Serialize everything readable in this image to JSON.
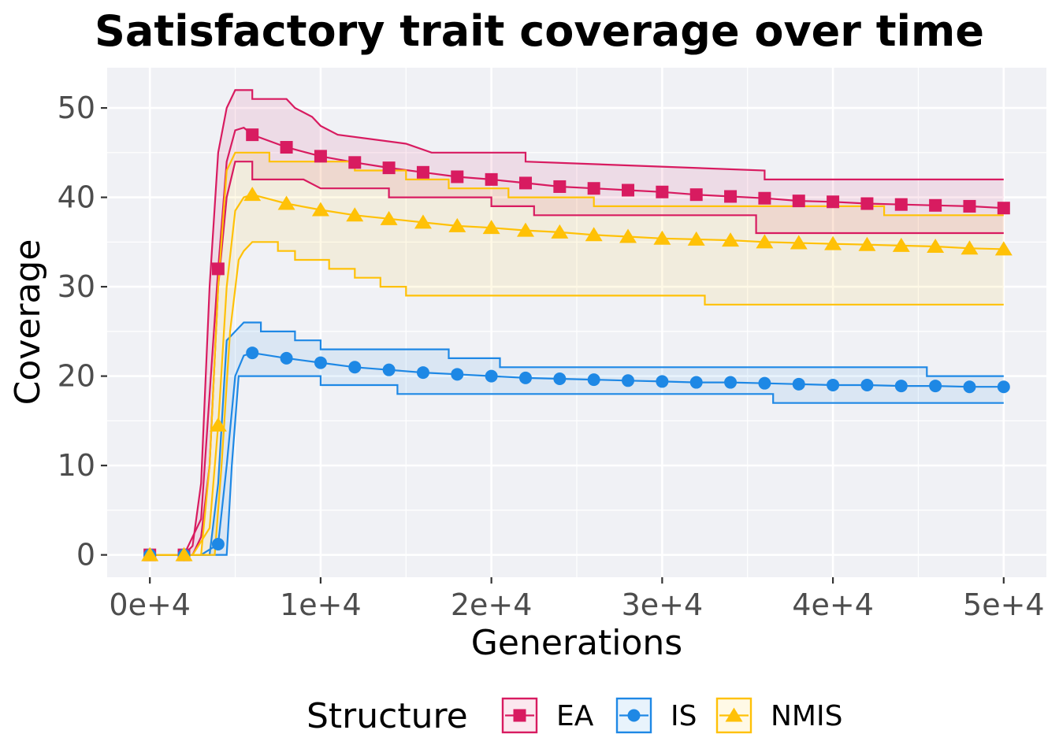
{
  "chart_data": {
    "type": "line",
    "title": "Satisfactory trait coverage over time",
    "xlabel": "Generations",
    "ylabel": "Coverage",
    "xlim": [
      -2500,
      52500
    ],
    "ylim": [
      -2.5,
      54.5
    ],
    "x_ticks": [
      0,
      10000,
      20000,
      30000,
      40000,
      50000
    ],
    "x_tick_labels": [
      "0e+4",
      "1e+4",
      "2e+4",
      "3e+4",
      "4e+4",
      "5e+4"
    ],
    "y_ticks": [
      0,
      10,
      20,
      30,
      40,
      50
    ],
    "y_tick_labels": [
      "0",
      "10",
      "20",
      "30",
      "40",
      "50"
    ],
    "grid": true,
    "legend": {
      "title": "Structure",
      "position": "bottom"
    },
    "series": [
      {
        "name": "EA",
        "color": "#d81b60",
        "marker": "square",
        "mean": [
          [
            0,
            0
          ],
          [
            2000,
            0
          ],
          [
            3000,
            4
          ],
          [
            4000,
            32
          ],
          [
            4500,
            44
          ],
          [
            5000,
            47.5
          ],
          [
            5500,
            47.8
          ],
          [
            6000,
            47
          ],
          [
            8000,
            45.6
          ],
          [
            10000,
            44.6
          ],
          [
            12000,
            43.9
          ],
          [
            14000,
            43.3
          ],
          [
            16000,
            42.8
          ],
          [
            18000,
            42.3
          ],
          [
            20000,
            42
          ],
          [
            22000,
            41.6
          ],
          [
            24000,
            41.2
          ],
          [
            26000,
            41
          ],
          [
            28000,
            40.8
          ],
          [
            30000,
            40.6
          ],
          [
            32000,
            40.3
          ],
          [
            34000,
            40.1
          ],
          [
            36000,
            39.9
          ],
          [
            38000,
            39.6
          ],
          [
            40000,
            39.5
          ],
          [
            42000,
            39.3
          ],
          [
            44000,
            39.2
          ],
          [
            46000,
            39.1
          ],
          [
            48000,
            39
          ],
          [
            50000,
            38.8
          ]
        ],
        "upper": [
          [
            0,
            0
          ],
          [
            2000,
            0
          ],
          [
            2500,
            1
          ],
          [
            3000,
            8
          ],
          [
            3500,
            30
          ],
          [
            4000,
            45
          ],
          [
            4500,
            50
          ],
          [
            5000,
            52
          ],
          [
            6000,
            52
          ],
          [
            6000,
            51
          ],
          [
            8000,
            51
          ],
          [
            8500,
            50
          ],
          [
            9500,
            49
          ],
          [
            10000,
            48
          ],
          [
            11000,
            47
          ],
          [
            15000,
            46
          ],
          [
            16500,
            45
          ],
          [
            22000,
            45
          ],
          [
            22000,
            44
          ],
          [
            36000,
            43
          ],
          [
            36000,
            42
          ],
          [
            50000,
            42
          ]
        ],
        "lower": [
          [
            0,
            0
          ],
          [
            2500,
            0
          ],
          [
            3000,
            2
          ],
          [
            3500,
            10
          ],
          [
            4000,
            30
          ],
          [
            4500,
            40
          ],
          [
            5000,
            44
          ],
          [
            6000,
            44
          ],
          [
            6000,
            42
          ],
          [
            9000,
            42
          ],
          [
            10000,
            41
          ],
          [
            14000,
            41
          ],
          [
            14000,
            40
          ],
          [
            20000,
            40
          ],
          [
            20000,
            39
          ],
          [
            22500,
            39
          ],
          [
            22500,
            38
          ],
          [
            35500,
            38
          ],
          [
            35500,
            36
          ],
          [
            50000,
            36
          ]
        ]
      },
      {
        "name": "IS",
        "color": "#1e88e5",
        "marker": "circle",
        "mean": [
          [
            0,
            0
          ],
          [
            3000,
            0
          ],
          [
            4000,
            1.2
          ],
          [
            4500,
            10
          ],
          [
            5000,
            20
          ],
          [
            5500,
            22.3
          ],
          [
            6000,
            22.6
          ],
          [
            8000,
            22
          ],
          [
            10000,
            21.5
          ],
          [
            12000,
            21
          ],
          [
            14000,
            20.7
          ],
          [
            16000,
            20.4
          ],
          [
            18000,
            20.2
          ],
          [
            20000,
            20
          ],
          [
            22000,
            19.8
          ],
          [
            24000,
            19.7
          ],
          [
            26000,
            19.6
          ],
          [
            28000,
            19.5
          ],
          [
            30000,
            19.4
          ],
          [
            32000,
            19.3
          ],
          [
            34000,
            19.3
          ],
          [
            36000,
            19.2
          ],
          [
            38000,
            19.1
          ],
          [
            40000,
            19
          ],
          [
            42000,
            19
          ],
          [
            44000,
            18.9
          ],
          [
            46000,
            18.9
          ],
          [
            48000,
            18.8
          ],
          [
            50000,
            18.8
          ]
        ],
        "upper": [
          [
            0,
            0
          ],
          [
            3500,
            0
          ],
          [
            4000,
            8
          ],
          [
            4500,
            24
          ],
          [
            5000,
            25
          ],
          [
            5500,
            26
          ],
          [
            6500,
            26
          ],
          [
            6500,
            25
          ],
          [
            8500,
            25
          ],
          [
            8500,
            24
          ],
          [
            10000,
            24
          ],
          [
            10000,
            23
          ],
          [
            17500,
            23
          ],
          [
            17500,
            22
          ],
          [
            20500,
            22
          ],
          [
            20500,
            21
          ],
          [
            45500,
            21
          ],
          [
            45500,
            20
          ],
          [
            50000,
            20
          ]
        ],
        "lower": [
          [
            0,
            0
          ],
          [
            4500,
            0
          ],
          [
            4800,
            10
          ],
          [
            5200,
            20
          ],
          [
            10000,
            20
          ],
          [
            10000,
            19
          ],
          [
            14500,
            19
          ],
          [
            14500,
            18
          ],
          [
            36500,
            18
          ],
          [
            36500,
            17
          ],
          [
            50000,
            17
          ]
        ]
      },
      {
        "name": "NMIS",
        "color": "#ffc107",
        "marker": "triangle",
        "mean": [
          [
            0,
            0
          ],
          [
            2500,
            0
          ],
          [
            3500,
            3
          ],
          [
            4000,
            14.5
          ],
          [
            4500,
            30
          ],
          [
            5000,
            38.5
          ],
          [
            5500,
            40
          ],
          [
            6000,
            40.3
          ],
          [
            8000,
            39.3
          ],
          [
            10000,
            38.6
          ],
          [
            12000,
            38
          ],
          [
            14000,
            37.6
          ],
          [
            16000,
            37.2
          ],
          [
            18000,
            36.8
          ],
          [
            20000,
            36.6
          ],
          [
            22000,
            36.3
          ],
          [
            24000,
            36.1
          ],
          [
            26000,
            35.8
          ],
          [
            28000,
            35.6
          ],
          [
            30000,
            35.4
          ],
          [
            32000,
            35.3
          ],
          [
            34000,
            35.2
          ],
          [
            36000,
            35
          ],
          [
            38000,
            34.9
          ],
          [
            40000,
            34.8
          ],
          [
            42000,
            34.7
          ],
          [
            44000,
            34.6
          ],
          [
            46000,
            34.5
          ],
          [
            48000,
            34.3
          ],
          [
            50000,
            34.2
          ]
        ],
        "upper": [
          [
            0,
            0
          ],
          [
            3000,
            0
          ],
          [
            3500,
            10
          ],
          [
            4000,
            30
          ],
          [
            4500,
            43
          ],
          [
            5000,
            45
          ],
          [
            7000,
            45
          ],
          [
            7000,
            44
          ],
          [
            12000,
            44
          ],
          [
            12000,
            43
          ],
          [
            15000,
            43
          ],
          [
            15000,
            42
          ],
          [
            17500,
            42
          ],
          [
            17500,
            41
          ],
          [
            21000,
            41
          ],
          [
            21000,
            40
          ],
          [
            26000,
            40
          ],
          [
            26000,
            39
          ],
          [
            43000,
            39
          ],
          [
            43000,
            38
          ],
          [
            50000,
            38
          ]
        ],
        "lower": [
          [
            0,
            0
          ],
          [
            3800,
            0
          ],
          [
            4200,
            10
          ],
          [
            4700,
            25
          ],
          [
            5200,
            33
          ],
          [
            5500,
            34
          ],
          [
            6000,
            35
          ],
          [
            7500,
            35
          ],
          [
            7500,
            34
          ],
          [
            8500,
            34
          ],
          [
            8500,
            33
          ],
          [
            10500,
            33
          ],
          [
            10500,
            32
          ],
          [
            12000,
            32
          ],
          [
            12000,
            31
          ],
          [
            13500,
            31
          ],
          [
            13500,
            30
          ],
          [
            15000,
            30
          ],
          [
            15000,
            29
          ],
          [
            32500,
            29
          ],
          [
            32500,
            28
          ],
          [
            50000,
            28
          ]
        ]
      }
    ]
  }
}
